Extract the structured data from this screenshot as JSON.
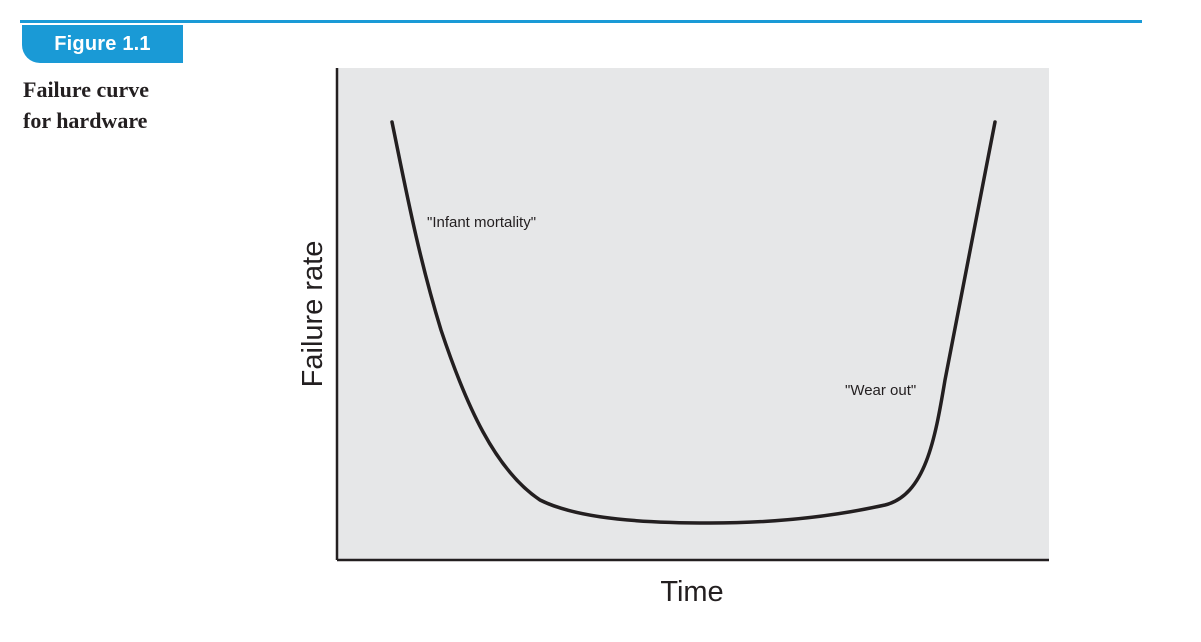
{
  "figure": {
    "label": "Figure 1.1",
    "caption_line1": "Failure curve",
    "caption_line2": "for hardware"
  },
  "diagram": {
    "y_axis_label": "Failure rate",
    "x_axis_label": "Time",
    "annotations": {
      "infant_mortality": "\"Infant mortality\"",
      "wear_out": "\"Wear out\""
    }
  },
  "colors": {
    "accent": "#1a9ad6",
    "plot_background": "#e6e7e8",
    "ink": "#231f20"
  }
}
